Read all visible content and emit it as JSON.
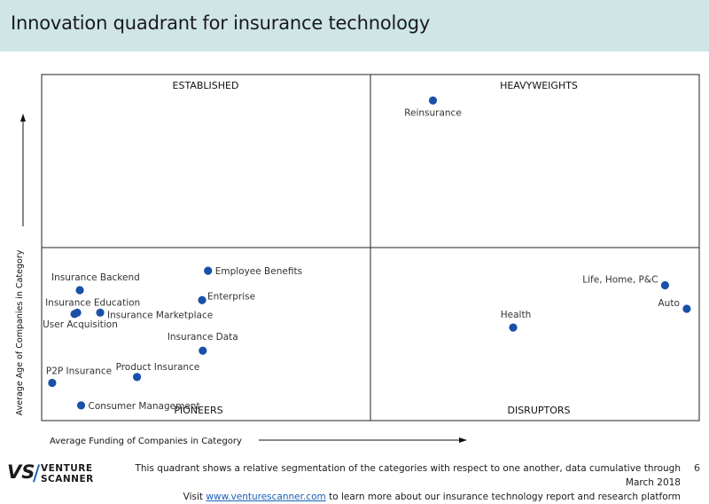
{
  "header": {
    "title": "Innovation quadrant for insurance technology"
  },
  "chart_data": {
    "type": "scatter",
    "title": "Innovation quadrant for insurance technology",
    "xlabel": "Average Funding of Companies in Category",
    "ylabel": "Average Age of Companies in Category",
    "xlim": [
      0,
      100
    ],
    "ylim": [
      0,
      100
    ],
    "quadrants": {
      "top_left": "ESTABLISHED",
      "top_right": "HEAVYWEIGHTS",
      "bottom_left": "PIONEERS",
      "bottom_right": "DISRUPTORS"
    },
    "points": [
      {
        "label": "Reinsurance",
        "x": 59.5,
        "y": 92.5
      },
      {
        "label": "Employee Benefits",
        "x": 25.3,
        "y": 43.3
      },
      {
        "label": "Insurance Backend",
        "x": 5.8,
        "y": 37.7
      },
      {
        "label": "Enterprise",
        "x": 24.4,
        "y": 34.8
      },
      {
        "label": "Insurance Education",
        "x": 5.4,
        "y": 31.2
      },
      {
        "label": "User Acquisition",
        "x": 5.0,
        "y": 30.8
      },
      {
        "label": "Insurance Marketplace",
        "x": 8.9,
        "y": 31.2
      },
      {
        "label": "Insurance Data",
        "x": 24.5,
        "y": 20.2
      },
      {
        "label": "Product Insurance",
        "x": 14.5,
        "y": 12.6
      },
      {
        "label": "P2P Insurance",
        "x": 1.6,
        "y": 10.9
      },
      {
        "label": "Consumer Management",
        "x": 6.0,
        "y": 4.4
      },
      {
        "label": "Health",
        "x": 71.7,
        "y": 26.9
      },
      {
        "label": "Life, Home, P&C",
        "x": 94.8,
        "y": 39.1
      },
      {
        "label": "Auto",
        "x": 98.1,
        "y": 32.3
      }
    ]
  },
  "footer": {
    "note_line1": "This quadrant shows a relative segmentation of the categories with respect to one another, data cumulative through March 2018",
    "note_line2_prefix": "Visit ",
    "note_link": "www.venturescanner.com",
    "note_line2_suffix": " to learn more about our insurance technology report and research platform",
    "page_number": "6"
  },
  "logo": {
    "mark": "VS",
    "line1": "VENTURE",
    "line2": "SCANNER"
  },
  "colors": {
    "point": "#1a50a8",
    "header_bg": "#cfe5e6",
    "link": "#1a5fb4"
  }
}
